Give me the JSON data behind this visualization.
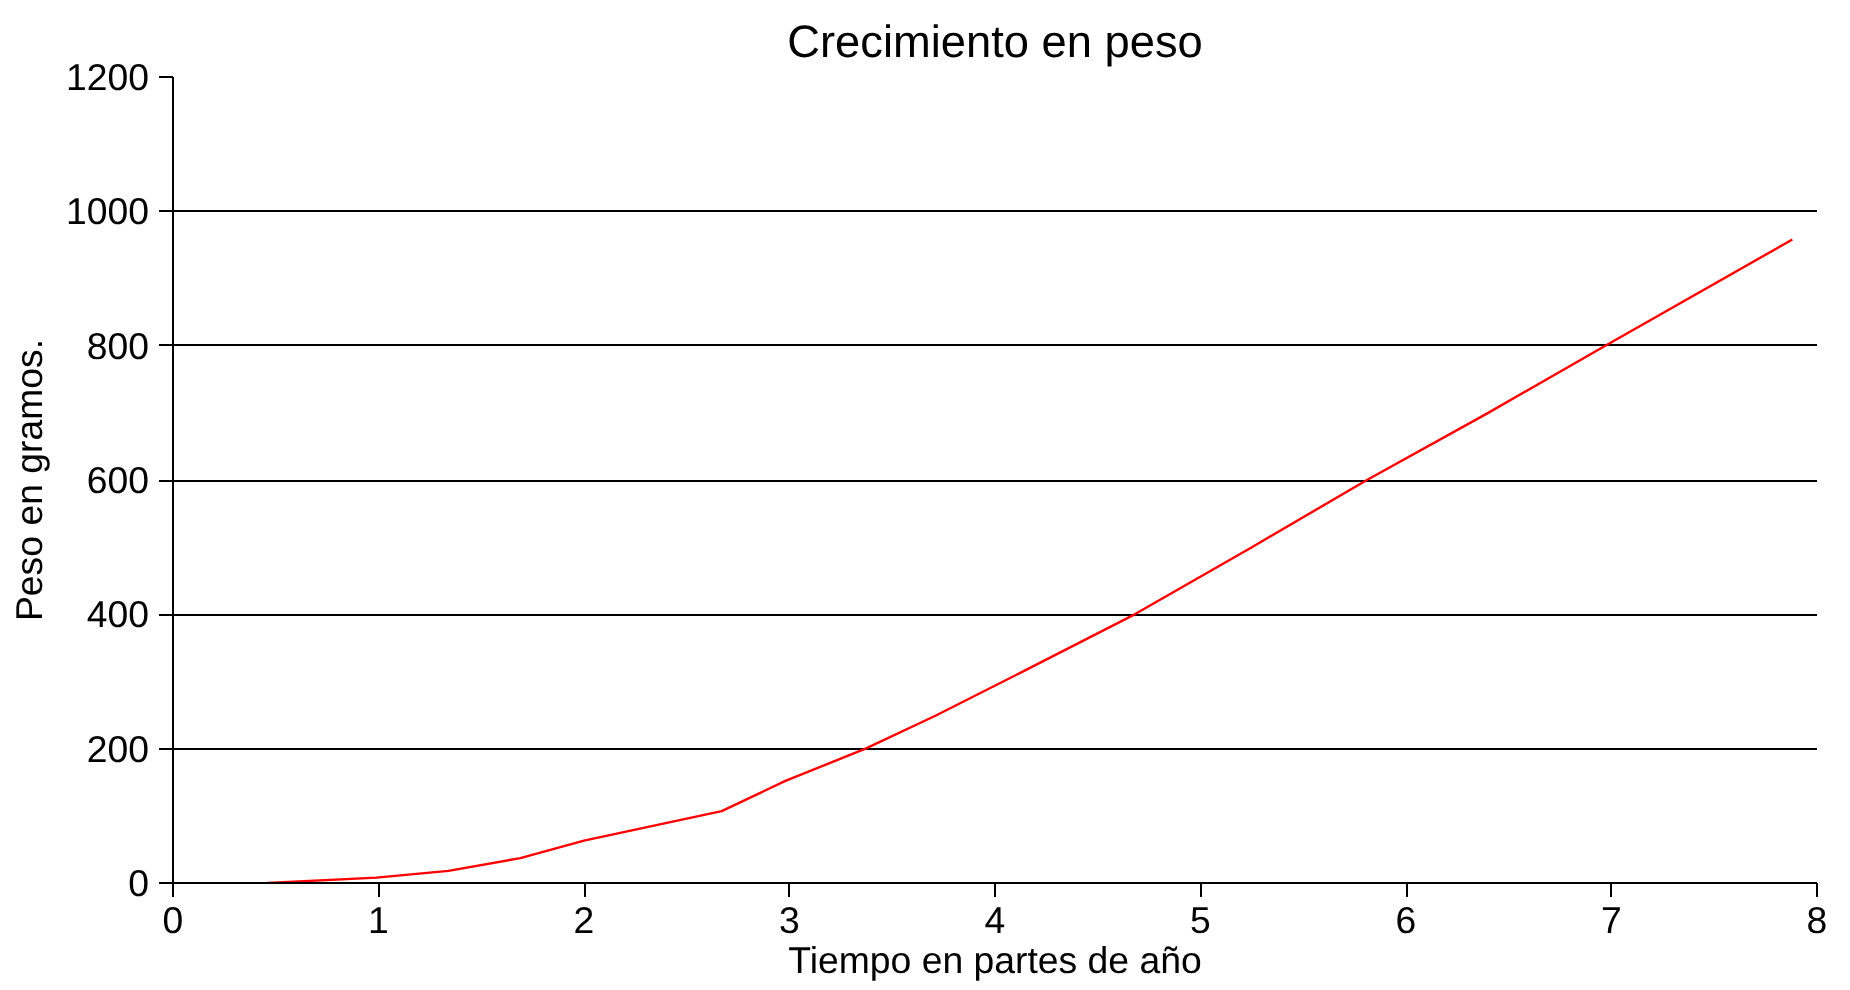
{
  "chart_data": {
    "type": "line",
    "title": "Crecimiento en peso",
    "xlabel": "Tiempo en partes de año",
    "ylabel": "Peso en gramos.",
    "x": [
      0.46,
      0.99,
      1.34,
      1.69,
      2.0,
      2.67,
      2.98,
      3.37,
      3.71,
      4.13,
      4.68,
      5.25,
      5.81,
      6.4,
      6.97,
      7.88
    ],
    "series": [
      {
        "color": "#ff0000",
        "values": [
          0,
          8,
          18,
          37,
          63,
          107,
          152,
          200,
          249,
          314,
          400,
          500,
          600,
          700,
          800,
          958
        ]
      }
    ],
    "xlim": [
      0,
      8
    ],
    "ylim": [
      0,
      1200
    ],
    "xticks": [
      0,
      1,
      2,
      3,
      4,
      5,
      6,
      7,
      8
    ],
    "yticks": [
      0,
      200,
      400,
      600,
      800,
      1000,
      1200
    ],
    "grid": "y",
    "marker": "none",
    "line_style": "solid"
  }
}
